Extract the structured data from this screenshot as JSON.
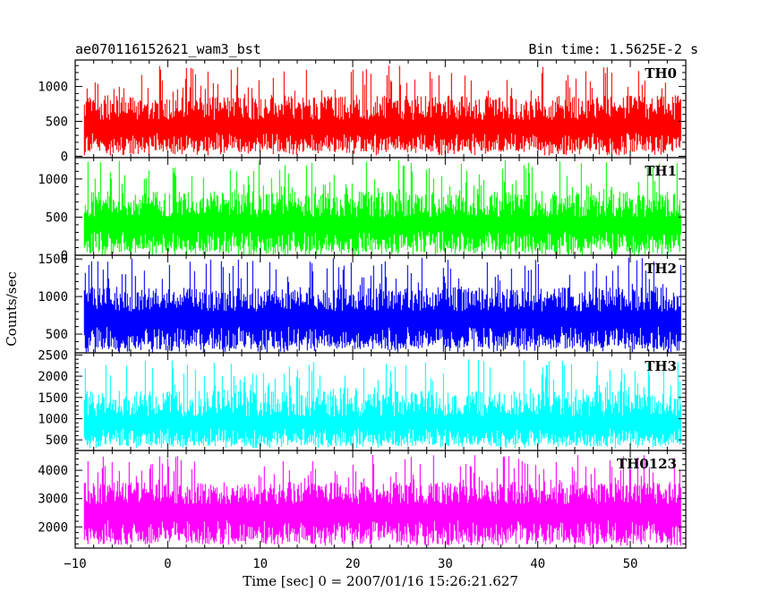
{
  "header": {
    "left_title": "ae070116152621_wam3_bst",
    "right_title": "Bin time: 1.5625E-2 s"
  },
  "axes": {
    "xlabel": "Time [sec] 0 = 2007/01/16 15:26:21.627",
    "ylabel": "Counts/sec"
  },
  "chart_data": {
    "type": "line",
    "x_range": [
      -10,
      56
    ],
    "x_ticks": [
      -10,
      0,
      10,
      20,
      30,
      40,
      50
    ],
    "data_x_start": -9,
    "data_x_end": 55.5,
    "bin_time_s": 0.015625,
    "panels": [
      {
        "name": "TH0",
        "color": "#ff0000",
        "ylim": [
          -20,
          1380
        ],
        "yticks": [
          0,
          500,
          1000
        ],
        "baseline_mean": 520,
        "noise_low": 60,
        "noise_high": 1300
      },
      {
        "name": "TH1",
        "color": "#00ff00",
        "ylim": [
          0,
          1280
        ],
        "yticks": [
          0,
          500,
          1000
        ],
        "baseline_mean": 500,
        "noise_low": 40,
        "noise_high": 1250
      },
      {
        "name": "TH2",
        "color": "#0000ff",
        "ylim": [
          250,
          1550
        ],
        "yticks": [
          500,
          1000,
          1500
        ],
        "baseline_mean": 800,
        "noise_low": 300,
        "noise_high": 1520
      },
      {
        "name": "TH3",
        "color": "#00ffff",
        "ylim": [
          250,
          2550
        ],
        "yticks": [
          500,
          1000,
          1500,
          2000,
          2500
        ],
        "baseline_mean": 1050,
        "noise_low": 350,
        "noise_high": 2400
      },
      {
        "name": "TH0123",
        "color": "#ff00ff",
        "ylim": [
          1250,
          4700
        ],
        "yticks": [
          2000,
          3000,
          4000
        ],
        "baseline_mean": 2800,
        "noise_low": 1380,
        "noise_high": 4550
      }
    ]
  }
}
